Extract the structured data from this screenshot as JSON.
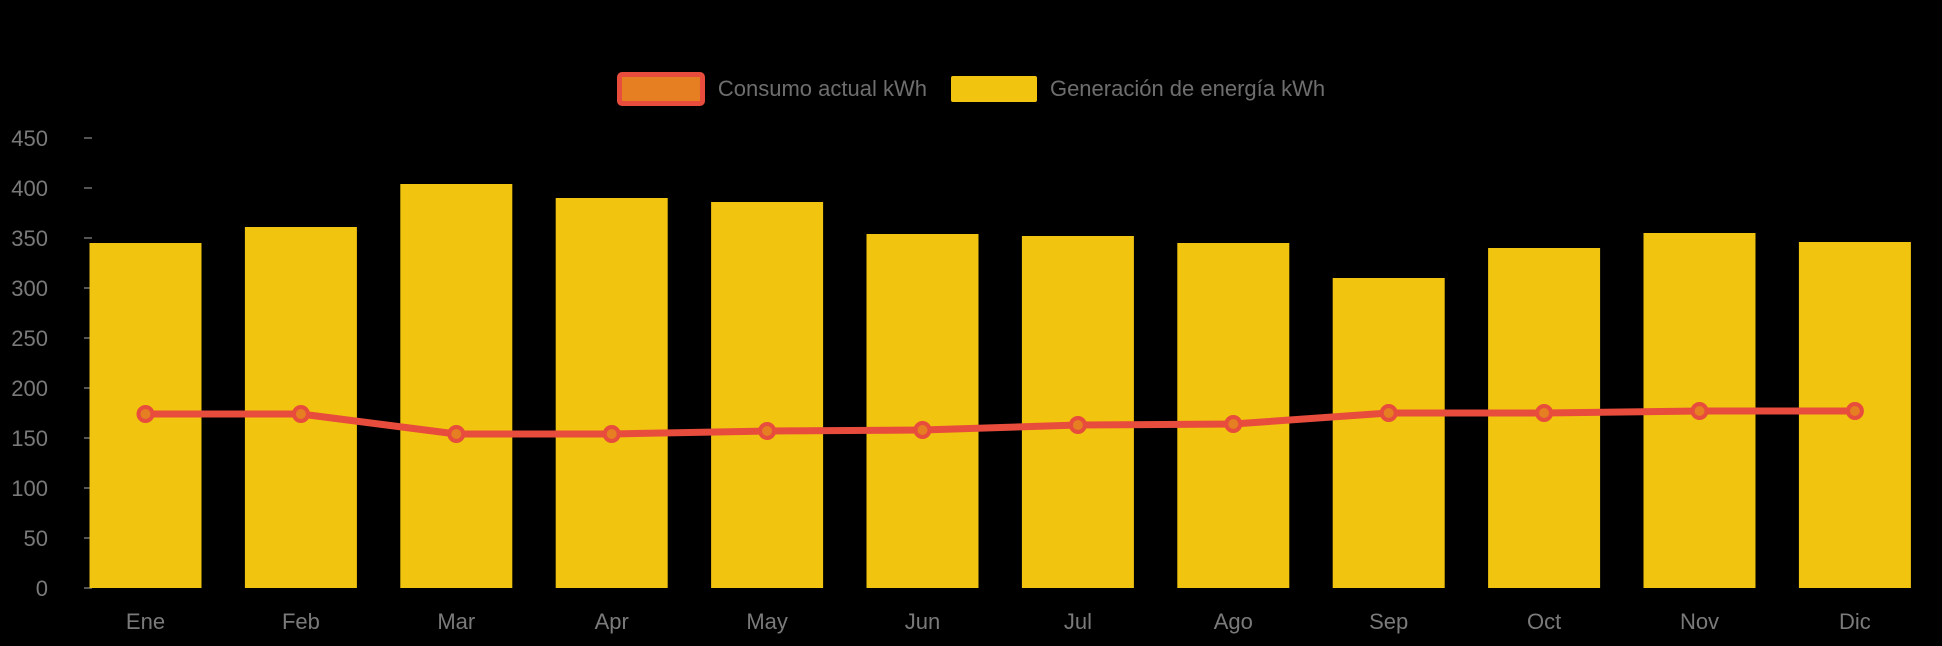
{
  "chart_data": {
    "type": "bar",
    "subtype": "bar-line-combo",
    "background": "#000000",
    "categories": [
      "Ene",
      "Feb",
      "Mar",
      "Apr",
      "May",
      "Jun",
      "Jul",
      "Ago",
      "Sep",
      "Oct",
      "Nov",
      "Dic"
    ],
    "series": [
      {
        "name": "Consumo actual kWh",
        "type": "line",
        "line_color": "#E74C3C",
        "point_fill": "#E67E22",
        "values": [
          174,
          174,
          154,
          154,
          157,
          158,
          163,
          164,
          175,
          175,
          177,
          177
        ]
      },
      {
        "name": "Generación de energía kWh",
        "type": "bar",
        "bar_color": "#F1C40F",
        "values": [
          345,
          361,
          404,
          390,
          386,
          354,
          352,
          345,
          310,
          340,
          355,
          346
        ]
      }
    ],
    "ylim": [
      0,
      450
    ],
    "ytick_step": 50,
    "ytick_labels": [
      "0",
      "50",
      "100",
      "150",
      "200",
      "250",
      "300",
      "350",
      "400",
      "450"
    ],
    "grid": false,
    "legend_position": "top-center"
  },
  "legend": {
    "items": [
      {
        "label": "Consumo actual kWh"
      },
      {
        "label": "Generación de energía kWh"
      }
    ]
  },
  "colors": {
    "background": "#000000",
    "bar": "#F1C40F",
    "line": "#E74C3C",
    "point": "#E67E22",
    "axis_text": "#7a7a7a",
    "legend_text": "#6e6e6e",
    "tick": "#555555"
  }
}
